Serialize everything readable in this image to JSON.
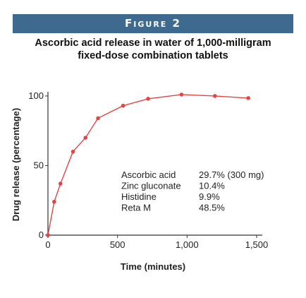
{
  "figure": {
    "label": "Figure 2",
    "title_line1": "Ascorbic acid release in water of 1,000-milligram",
    "title_line2": "fixed-dose combination tablets"
  },
  "chart_data": {
    "type": "line",
    "title": "Ascorbic acid release in water of 1,000-milligram fixed-dose combination tablets",
    "xlabel": "Time (minutes)",
    "ylabel": "Drug release (percentage)",
    "xlim": [
      0,
      1500
    ],
    "ylim": [
      0,
      103
    ],
    "x_ticks": [
      0,
      500,
      1000,
      1500
    ],
    "x_tick_labels": [
      "0",
      "500",
      "1,000",
      "1,500"
    ],
    "y_ticks": [
      0,
      50,
      100
    ],
    "y_tick_labels": [
      "0",
      "50",
      "100"
    ],
    "grid": false,
    "line_color": "#e04545",
    "series": [
      {
        "x": [
          0,
          45,
          90,
          180,
          270,
          360,
          540,
          720,
          960,
          1200,
          1440
        ],
        "y": [
          0,
          24,
          37,
          60,
          70,
          84,
          93,
          98,
          101,
          100,
          98.5
        ]
      }
    ],
    "annotation": [
      {
        "name": "Ascorbic acid",
        "value": "29.7% (300 mg)"
      },
      {
        "name": "Zinc gluconate",
        "value": "10.4%"
      },
      {
        "name": "Histidine",
        "value": "9.9%"
      },
      {
        "name": "Reta M",
        "value": "48.5%"
      }
    ]
  }
}
